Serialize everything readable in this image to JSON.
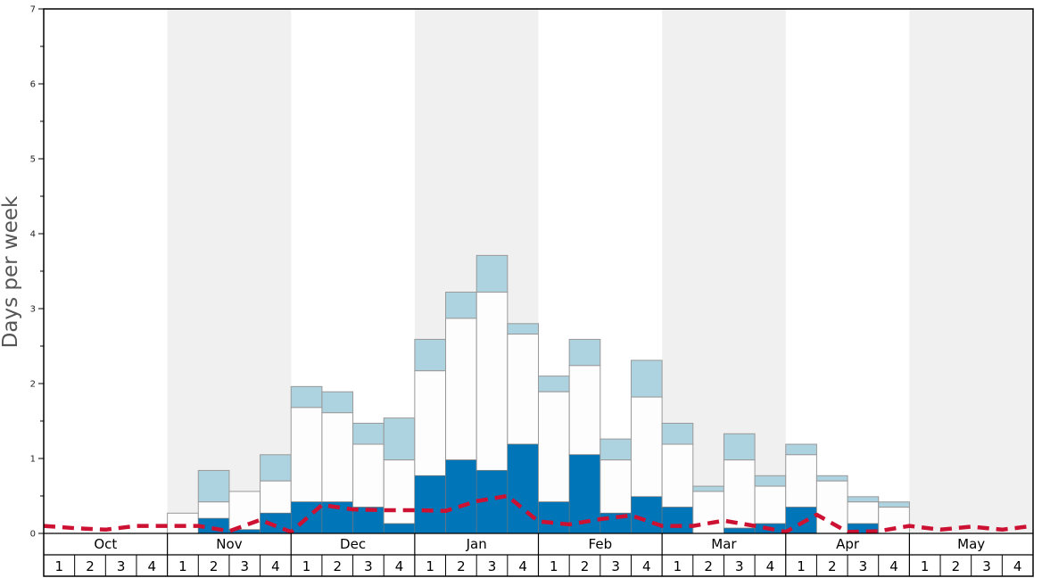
{
  "chart_data": {
    "type": "bar",
    "ylabel": "Days per week",
    "ylim": [
      0,
      7
    ],
    "yticks": [
      "0",
      "1",
      "2",
      "3",
      "4",
      "5",
      "6",
      "7"
    ],
    "months": [
      "Oct",
      "Nov",
      "Dec",
      "Jan",
      "Feb",
      "Mar",
      "Apr",
      "May"
    ],
    "weeks": [
      "1",
      "2",
      "3",
      "4"
    ],
    "colors": {
      "base": "#0075b8",
      "mid": "#fdfdfd",
      "top": "#aed3e0",
      "line": "#cc1133",
      "shade": "#f0f0f0"
    },
    "stack_levels": {
      "dark_blue": [
        0,
        0,
        0,
        0,
        0,
        0.2,
        0.05,
        0.27,
        0.42,
        0.42,
        0.35,
        0.13,
        0.77,
        0.98,
        0.84,
        1.19,
        0.42,
        1.05,
        0.27,
        0.49,
        0.35,
        0,
        0.07,
        0.13,
        0.35,
        0,
        0.13,
        0,
        0,
        0,
        0,
        0
      ],
      "white": [
        0,
        0,
        0,
        0,
        0.27,
        0.42,
        0.56,
        0.7,
        1.68,
        1.61,
        1.19,
        0.98,
        2.17,
        2.87,
        3.22,
        2.66,
        1.89,
        2.24,
        0.98,
        1.82,
        1.19,
        0.56,
        0.98,
        0.63,
        1.05,
        0.7,
        0.42,
        0.35,
        0,
        0,
        0,
        0
      ],
      "light_blue": [
        0,
        0,
        0,
        0,
        0.27,
        0.84,
        0.56,
        1.05,
        1.96,
        1.89,
        1.47,
        1.54,
        2.59,
        3.22,
        3.71,
        2.8,
        2.1,
        2.59,
        1.26,
        2.31,
        1.47,
        0.63,
        1.33,
        0.77,
        1.19,
        0.77,
        0.49,
        0.42,
        0,
        0,
        0,
        0
      ]
    },
    "line_series": [
      0.1,
      0.07,
      0.05,
      0.1,
      0.1,
      0.1,
      0.03,
      0.18,
      0.02,
      0.38,
      0.32,
      0.31,
      0.31,
      0.3,
      0.43,
      0.5,
      0.16,
      0.12,
      0.19,
      0.24,
      0.1,
      0.1,
      0.17,
      0.1,
      0.02,
      0.25,
      0.02,
      0.03,
      0.1,
      0.05,
      0.09,
      0.05,
      0.1
    ]
  }
}
